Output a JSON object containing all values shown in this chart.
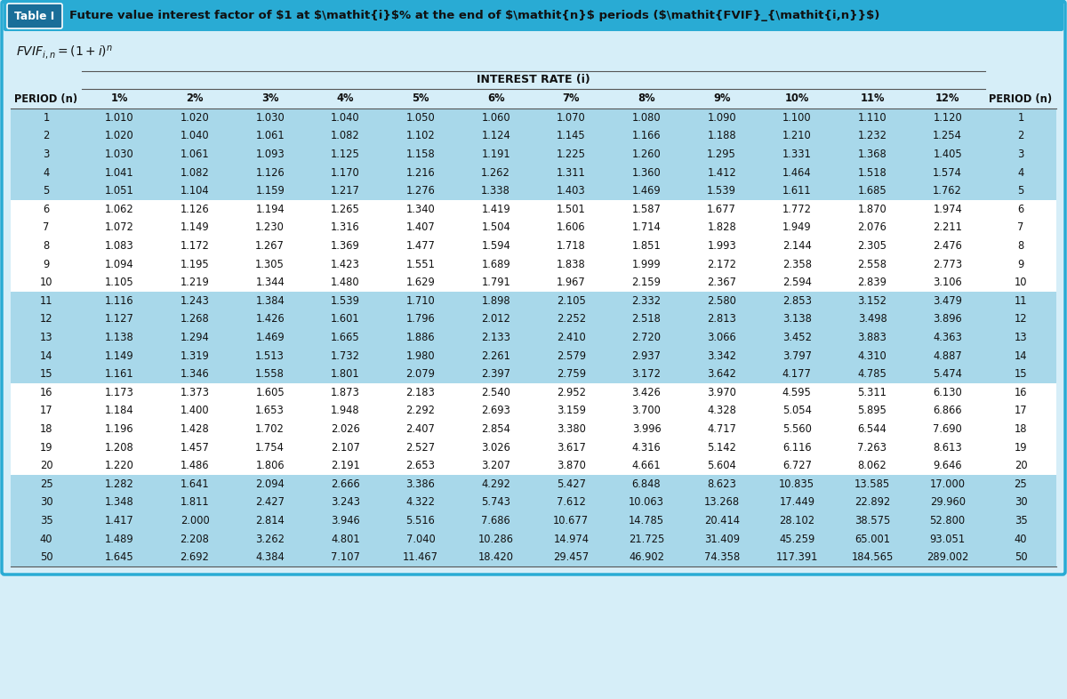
{
  "title_bar_color": "#29ABD4",
  "table_label": "Table I",
  "bg_color": "#D6EEF8",
  "header_interest_label": "INTEREST RATE (i)",
  "col_headers": [
    "PERIOD (n)",
    "1%",
    "2%",
    "3%",
    "4%",
    "5%",
    "6%",
    "7%",
    "8%",
    "9%",
    "10%",
    "11%",
    "12%",
    "PERIOD (n)"
  ],
  "shaded_rows": [
    1,
    2,
    3,
    4,
    5,
    11,
    12,
    13,
    14,
    15,
    25,
    30,
    35,
    40,
    50
  ],
  "row_shade_color": "#A8D8EA",
  "white_row_color": "#FFFFFF",
  "periods": [
    1,
    2,
    3,
    4,
    5,
    6,
    7,
    8,
    9,
    10,
    11,
    12,
    13,
    14,
    15,
    16,
    17,
    18,
    19,
    20,
    25,
    30,
    35,
    40,
    50
  ],
  "data": {
    "1": [
      1.01,
      1.02,
      1.03,
      1.04,
      1.05,
      1.06,
      1.07,
      1.08,
      1.09,
      1.1,
      1.11,
      1.12
    ],
    "2": [
      1.02,
      1.04,
      1.061,
      1.082,
      1.102,
      1.124,
      1.145,
      1.166,
      1.188,
      1.21,
      1.232,
      1.254
    ],
    "3": [
      1.03,
      1.061,
      1.093,
      1.125,
      1.158,
      1.191,
      1.225,
      1.26,
      1.295,
      1.331,
      1.368,
      1.405
    ],
    "4": [
      1.041,
      1.082,
      1.126,
      1.17,
      1.216,
      1.262,
      1.311,
      1.36,
      1.412,
      1.464,
      1.518,
      1.574
    ],
    "5": [
      1.051,
      1.104,
      1.159,
      1.217,
      1.276,
      1.338,
      1.403,
      1.469,
      1.539,
      1.611,
      1.685,
      1.762
    ],
    "6": [
      1.062,
      1.126,
      1.194,
      1.265,
      1.34,
      1.419,
      1.501,
      1.587,
      1.677,
      1.772,
      1.87,
      1.974
    ],
    "7": [
      1.072,
      1.149,
      1.23,
      1.316,
      1.407,
      1.504,
      1.606,
      1.714,
      1.828,
      1.949,
      2.076,
      2.211
    ],
    "8": [
      1.083,
      1.172,
      1.267,
      1.369,
      1.477,
      1.594,
      1.718,
      1.851,
      1.993,
      2.144,
      2.305,
      2.476
    ],
    "9": [
      1.094,
      1.195,
      1.305,
      1.423,
      1.551,
      1.689,
      1.838,
      1.999,
      2.172,
      2.358,
      2.558,
      2.773
    ],
    "10": [
      1.105,
      1.219,
      1.344,
      1.48,
      1.629,
      1.791,
      1.967,
      2.159,
      2.367,
      2.594,
      2.839,
      3.106
    ],
    "11": [
      1.116,
      1.243,
      1.384,
      1.539,
      1.71,
      1.898,
      2.105,
      2.332,
      2.58,
      2.853,
      3.152,
      3.479
    ],
    "12": [
      1.127,
      1.268,
      1.426,
      1.601,
      1.796,
      2.012,
      2.252,
      2.518,
      2.813,
      3.138,
      3.498,
      3.896
    ],
    "13": [
      1.138,
      1.294,
      1.469,
      1.665,
      1.886,
      2.133,
      2.41,
      2.72,
      3.066,
      3.452,
      3.883,
      4.363
    ],
    "14": [
      1.149,
      1.319,
      1.513,
      1.732,
      1.98,
      2.261,
      2.579,
      2.937,
      3.342,
      3.797,
      4.31,
      4.887
    ],
    "15": [
      1.161,
      1.346,
      1.558,
      1.801,
      2.079,
      2.397,
      2.759,
      3.172,
      3.642,
      4.177,
      4.785,
      5.474
    ],
    "16": [
      1.173,
      1.373,
      1.605,
      1.873,
      2.183,
      2.54,
      2.952,
      3.426,
      3.97,
      4.595,
      5.311,
      6.13
    ],
    "17": [
      1.184,
      1.4,
      1.653,
      1.948,
      2.292,
      2.693,
      3.159,
      3.7,
      4.328,
      5.054,
      5.895,
      6.866
    ],
    "18": [
      1.196,
      1.428,
      1.702,
      2.026,
      2.407,
      2.854,
      3.38,
      3.996,
      4.717,
      5.56,
      6.544,
      7.69
    ],
    "19": [
      1.208,
      1.457,
      1.754,
      2.107,
      2.527,
      3.026,
      3.617,
      4.316,
      5.142,
      6.116,
      7.263,
      8.613
    ],
    "20": [
      1.22,
      1.486,
      1.806,
      2.191,
      2.653,
      3.207,
      3.87,
      4.661,
      5.604,
      6.727,
      8.062,
      9.646
    ],
    "25": [
      1.282,
      1.641,
      2.094,
      2.666,
      3.386,
      4.292,
      5.427,
      6.848,
      8.623,
      10.835,
      13.585,
      17.0
    ],
    "30": [
      1.348,
      1.811,
      2.427,
      3.243,
      4.322,
      5.743,
      7.612,
      10.063,
      13.268,
      17.449,
      22.892,
      29.96
    ],
    "35": [
      1.417,
      2.0,
      2.814,
      3.946,
      5.516,
      7.686,
      10.677,
      14.785,
      20.414,
      28.102,
      38.575,
      52.8
    ],
    "40": [
      1.489,
      2.208,
      3.262,
      4.801,
      7.04,
      10.286,
      14.974,
      21.725,
      31.409,
      45.259,
      65.001,
      93.051
    ],
    "50": [
      1.645,
      2.692,
      4.384,
      7.107,
      11.467,
      18.42,
      29.457,
      46.902,
      74.358,
      117.391,
      184.565,
      289.002
    ]
  }
}
